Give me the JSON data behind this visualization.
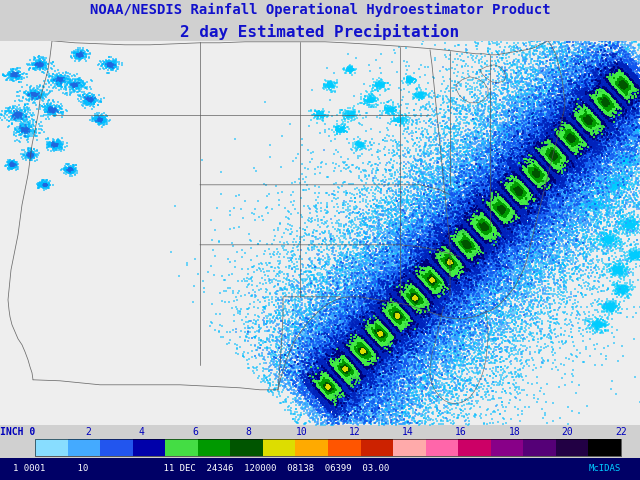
{
  "title1": "NOAA/NESDIS Rainfall Operational Hydroestimator Product",
  "title2": "2 day Estimated Precipitation",
  "title1_color": "#1111cc",
  "title2_color": "#1111cc",
  "bg_color": "#d0d0d0",
  "map_bg": "#e8e8e8",
  "colorbar_colors": [
    "#88ddff",
    "#44aaff",
    "#2255ee",
    "#0000aa",
    "#44dd44",
    "#009900",
    "#005500",
    "#dddd00",
    "#ffaa00",
    "#ff5500",
    "#cc2200",
    "#ffaaaa",
    "#ff66aa",
    "#cc0066",
    "#880088",
    "#550077",
    "#220044",
    "#000000"
  ],
  "tick_labels": [
    "0",
    "2",
    "4",
    "6",
    "8",
    "10",
    "12",
    "14",
    "16",
    "18",
    "20",
    "22"
  ],
  "colorbar_label": "INCH 0",
  "bottom_text": "1 0001      10              11 DEC  24346  120000  08138  06399  03.00",
  "bottom_text_right": "McIDAS",
  "state_border_color": "#555555",
  "scatter_cyan": "#00bbff",
  "scatter_blue1": "#3399ff",
  "scatter_blue2": "#0033cc",
  "scatter_darkblue": "#000088",
  "scatter_green1": "#33cc33",
  "scatter_green2": "#007700",
  "scatter_lgreen": "#99ff99",
  "scatter_yellow": "#dddd00"
}
